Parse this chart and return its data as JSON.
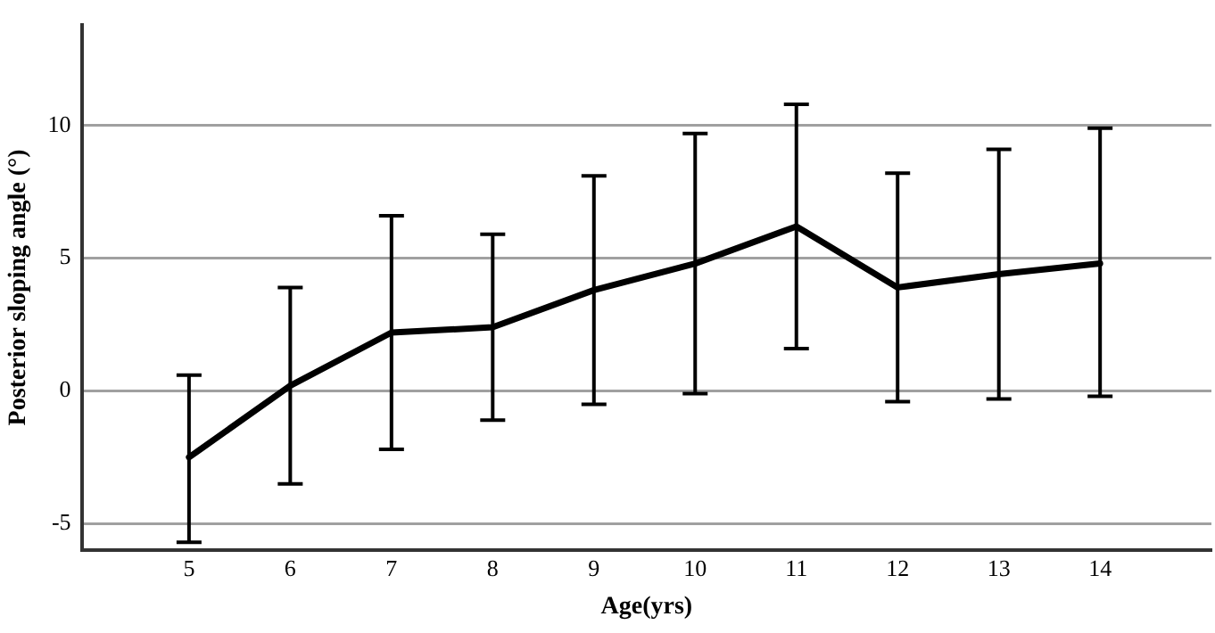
{
  "chart_data": {
    "type": "line",
    "xlabel": "Age(yrs)",
    "ylabel": "Posterior sloping angle (°)",
    "categories": [
      "5",
      "6",
      "7",
      "8",
      "9",
      "10",
      "11",
      "12",
      "13",
      "14"
    ],
    "series": [
      {
        "color": "#000000",
        "values": [
          -2.5,
          0.2,
          2.2,
          2.4,
          3.8,
          4.8,
          6.2,
          3.9,
          4.4,
          4.8
        ],
        "errors": [
          [
            -5.7,
            0.6
          ],
          [
            -3.5,
            3.9
          ],
          [
            -2.2,
            6.6
          ],
          [
            -1.1,
            5.9
          ],
          [
            -0.5,
            8.1
          ],
          [
            -0.1,
            9.7
          ],
          [
            1.6,
            10.8
          ],
          [
            -0.4,
            8.2
          ],
          [
            -0.3,
            9.1
          ],
          [
            -0.2,
            9.9
          ]
        ]
      }
    ],
    "ylim": [
      -6,
      13.8
    ],
    "yticks": [
      -5,
      0,
      5,
      10
    ],
    "grid": "y",
    "legend": false,
    "marker": "none",
    "line_style": "solid"
  }
}
